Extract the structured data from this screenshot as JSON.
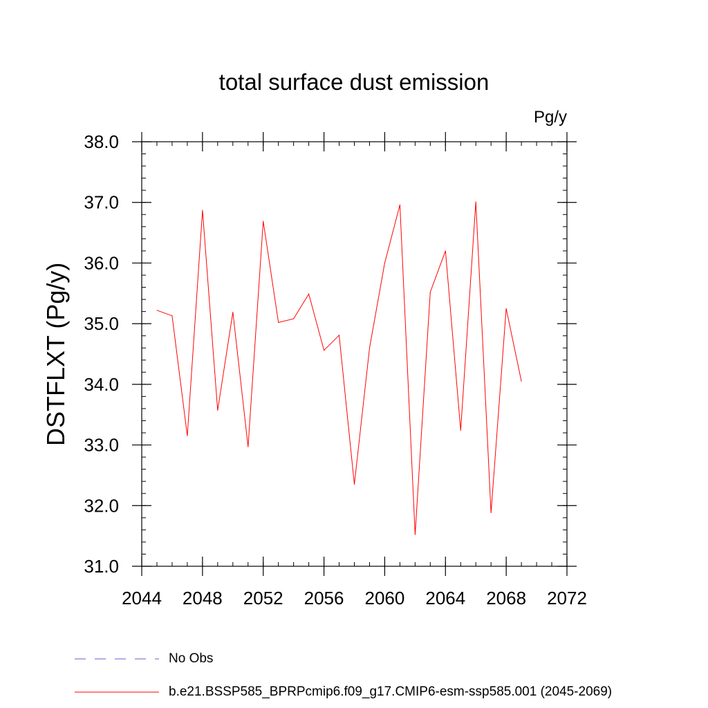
{
  "chart_data": {
    "type": "line",
    "title": "total surface dust emission",
    "units_label": "Pg/y",
    "ylabel": "DSTFLXT  (Pg/y)",
    "xlabel": "",
    "xlim": [
      2044,
      2072
    ],
    "ylim": [
      31.0,
      38.0
    ],
    "xticks": [
      "2044",
      "2048",
      "2052",
      "2056",
      "2060",
      "2064",
      "2068",
      "2072"
    ],
    "yticks": [
      "31.0",
      "32.0",
      "33.0",
      "34.0",
      "35.0",
      "36.0",
      "37.0",
      "38.0"
    ],
    "grid": false,
    "legend_position": "bottom-left",
    "x": [
      2045,
      2046,
      2047,
      2048,
      2049,
      2050,
      2051,
      2052,
      2053,
      2054,
      2055,
      2056,
      2057,
      2058,
      2059,
      2060,
      2061,
      2062,
      2063,
      2064,
      2065,
      2066,
      2067,
      2068,
      2069
    ],
    "series": [
      {
        "name": "b.e21.BSSP585_BPRPcmip6.f09_g17.CMIP6-esm-ssp585.001 (2045-2069)",
        "color": "#ff0000",
        "values": [
          35.22,
          35.13,
          33.15,
          36.87,
          33.57,
          35.19,
          32.97,
          36.69,
          35.02,
          35.08,
          35.49,
          34.56,
          34.81,
          32.35,
          34.6,
          36.0,
          36.96,
          31.52,
          35.52,
          36.2,
          33.24,
          37.01,
          31.88,
          35.25,
          34.05
        ]
      }
    ],
    "legend": [
      {
        "label": "No Obs",
        "color": "#6a5acd",
        "style": "dashed"
      },
      {
        "label": "b.e21.BSSP585_BPRPcmip6.f09_g17.CMIP6-esm-ssp585.001 (2045-2069)",
        "color": "#ff0000",
        "style": "solid"
      }
    ]
  }
}
